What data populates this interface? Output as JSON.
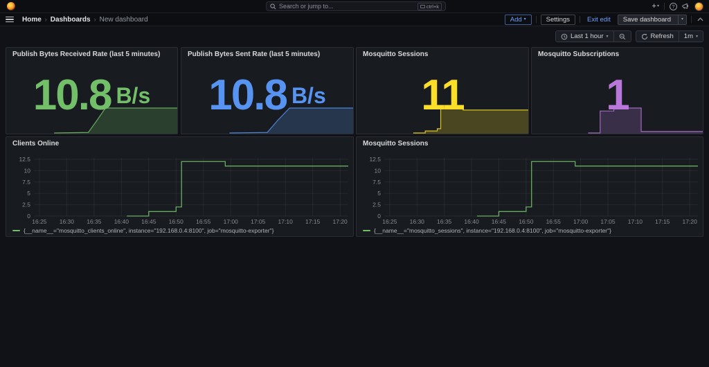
{
  "app": {
    "search": {
      "placeholder": "Search or jump to...",
      "shortcut": "ctrl+k"
    },
    "breadcrumbs": [
      "Home",
      "Dashboards",
      "New dashboard"
    ],
    "header_actions": {
      "add": "Add",
      "settings": "Settings",
      "exit_edit": "Exit edit",
      "save": "Save dashboard"
    },
    "time_controls": {
      "range": "Last 1 hour",
      "refresh": "Refresh",
      "interval": "1m"
    }
  },
  "colors": {
    "green": "#73BF69",
    "blue": "#5794F2",
    "yellow": "#FADE2A",
    "purple": "#B877D9",
    "canvas": "#111217",
    "panel_bg": "#181b1f",
    "accent_blue": "#6e9fff"
  },
  "stat_panels": [
    {
      "title": "Publish Bytes Received Rate (last 5 minutes)",
      "value": "10.8",
      "unit": "B/s",
      "color": "#73BF69",
      "spark": [
        [
          0.28,
          0
        ],
        [
          0.48,
          0.02
        ],
        [
          0.53,
          0.5
        ],
        [
          0.58,
          1
        ],
        [
          1,
          1
        ]
      ]
    },
    {
      "title": "Publish Bytes Sent Rate (last 5 minutes)",
      "value": "10.8",
      "unit": "B/s",
      "color": "#5794F2",
      "spark": [
        [
          0.28,
          0
        ],
        [
          0.5,
          0.02
        ],
        [
          0.56,
          0.5
        ],
        [
          0.63,
          1
        ],
        [
          1,
          1
        ]
      ]
    },
    {
      "title": "Mosquitto Sessions",
      "value": "11",
      "unit": "",
      "color": "#FADE2A",
      "spark": [
        [
          0.33,
          0
        ],
        [
          0.4,
          0
        ],
        [
          0.4,
          0.08
        ],
        [
          0.47,
          0.08
        ],
        [
          0.47,
          0.17
        ],
        [
          0.49,
          0.17
        ],
        [
          0.49,
          1
        ],
        [
          0.62,
          1
        ],
        [
          0.62,
          0.92
        ],
        [
          1,
          0.92
        ]
      ]
    },
    {
      "title": "Mosquitto Subscriptions",
      "value": "1",
      "unit": "",
      "color": "#B877D9",
      "spark": [
        [
          0.33,
          0
        ],
        [
          0.4,
          0
        ],
        [
          0.4,
          0.88
        ],
        [
          0.48,
          0.88
        ],
        [
          0.48,
          1
        ],
        [
          0.64,
          1
        ],
        [
          0.64,
          0.06
        ],
        [
          1,
          0.06
        ]
      ]
    }
  ],
  "timeseries_panels": [
    {
      "title": "Clients Online",
      "legend": "{__name__=\"mosquitto_clients_online\", instance=\"192.168.0.4:8100\", job=\"mosquitto-exporter\"}",
      "color": "#73BF69",
      "y_ticks": [
        0,
        2.5,
        5,
        7.5,
        10,
        12.5
      ],
      "y_max": 12.8,
      "x_domain": [
        24,
        81.5
      ],
      "x_tick_minutes": [
        25,
        30,
        35,
        40,
        45,
        50,
        55,
        60,
        65,
        70,
        75,
        80
      ],
      "x_tick_labels": [
        "16:25",
        "16:30",
        "16:35",
        "16:40",
        "16:45",
        "16:50",
        "16:55",
        "17:00",
        "17:05",
        "17:10",
        "17:15",
        "17:20"
      ],
      "points": [
        [
          41,
          0
        ],
        [
          45,
          1
        ],
        [
          50,
          2
        ],
        [
          51,
          12
        ],
        [
          59,
          11
        ],
        [
          81.5,
          11
        ]
      ]
    },
    {
      "title": "Mosquitto Sessions",
      "legend": "{__name__=\"mosquitto_sessions\", instance=\"192.168.0.4:8100\", job=\"mosquitto-exporter\"}",
      "color": "#73BF69",
      "y_ticks": [
        0,
        2.5,
        5,
        7.5,
        10,
        12.5
      ],
      "y_max": 12.8,
      "x_domain": [
        24,
        81.5
      ],
      "x_tick_minutes": [
        25,
        30,
        35,
        40,
        45,
        50,
        55,
        60,
        65,
        70,
        75,
        80
      ],
      "x_tick_labels": [
        "16:25",
        "16:30",
        "16:35",
        "16:40",
        "16:45",
        "16:50",
        "16:55",
        "17:00",
        "17:05",
        "17:10",
        "17:15",
        "17:20"
      ],
      "points": [
        [
          41,
          0
        ],
        [
          45,
          1
        ],
        [
          50,
          2
        ],
        [
          51,
          12
        ],
        [
          59,
          11
        ],
        [
          81.5,
          11
        ]
      ]
    }
  ],
  "chart_data": [
    {
      "type": "area",
      "title": "Publish Bytes Received Rate (last 5 minutes)",
      "stat_value": 10.8,
      "unit": "B/s",
      "color": "#73BF69",
      "note": "sparkline: zero until ~16:49, ramps up ~16:50-16:53, plateau near max until end of range"
    },
    {
      "type": "area",
      "title": "Publish Bytes Sent Rate (last 5 minutes)",
      "stat_value": 10.8,
      "unit": "B/s",
      "color": "#5794F2",
      "note": "sparkline: zero until ~16:50, ramps up ~16:50-16:56, plateau near max until end of range"
    },
    {
      "type": "area",
      "title": "Mosquitto Sessions",
      "stat_value": 11,
      "unit": "",
      "color": "#FADE2A",
      "note": "sparkline steps: 0 -> 1 -> 2 -> 12 plateau -> 11 plateau until end"
    },
    {
      "type": "area",
      "title": "Mosquitto Subscriptions",
      "stat_value": 1,
      "unit": "",
      "color": "#B877D9",
      "note": "sparkline pulse: rises ~16:45 to high plateau, drops ~16:59 to low level ~1 until end"
    },
    {
      "type": "line",
      "title": "Clients Online",
      "step": true,
      "x": [
        "16:41",
        "16:45",
        "16:50",
        "16:51",
        "16:59",
        "17:21"
      ],
      "y": [
        0,
        1,
        2,
        12,
        11,
        11
      ],
      "ylim": [
        0,
        12.8
      ],
      "y_ticks": [
        0,
        2.5,
        5,
        7.5,
        10,
        12.5
      ],
      "x_ticks": [
        "16:25",
        "16:30",
        "16:35",
        "16:40",
        "16:45",
        "16:50",
        "16:55",
        "17:00",
        "17:05",
        "17:10",
        "17:15",
        "17:20"
      ],
      "legend": [
        "{__name__=\"mosquitto_clients_online\", instance=\"192.168.0.4:8100\", job=\"mosquitto-exporter\"}"
      ],
      "legend_position": "bottom",
      "grid": true,
      "color": "#73BF69"
    },
    {
      "type": "line",
      "title": "Mosquitto Sessions",
      "step": true,
      "x": [
        "16:41",
        "16:45",
        "16:50",
        "16:51",
        "16:59",
        "17:21"
      ],
      "y": [
        0,
        1,
        2,
        12,
        11,
        11
      ],
      "ylim": [
        0,
        12.8
      ],
      "y_ticks": [
        0,
        2.5,
        5,
        7.5,
        10,
        12.5
      ],
      "x_ticks": [
        "16:25",
        "16:30",
        "16:35",
        "16:40",
        "16:45",
        "16:50",
        "16:55",
        "17:00",
        "17:05",
        "17:10",
        "17:15",
        "17:20"
      ],
      "legend": [
        "{__name__=\"mosquitto_sessions\", instance=\"192.168.0.4:8100\", job=\"mosquitto-exporter\"}"
      ],
      "legend_position": "bottom",
      "grid": true,
      "color": "#73BF69"
    }
  ]
}
